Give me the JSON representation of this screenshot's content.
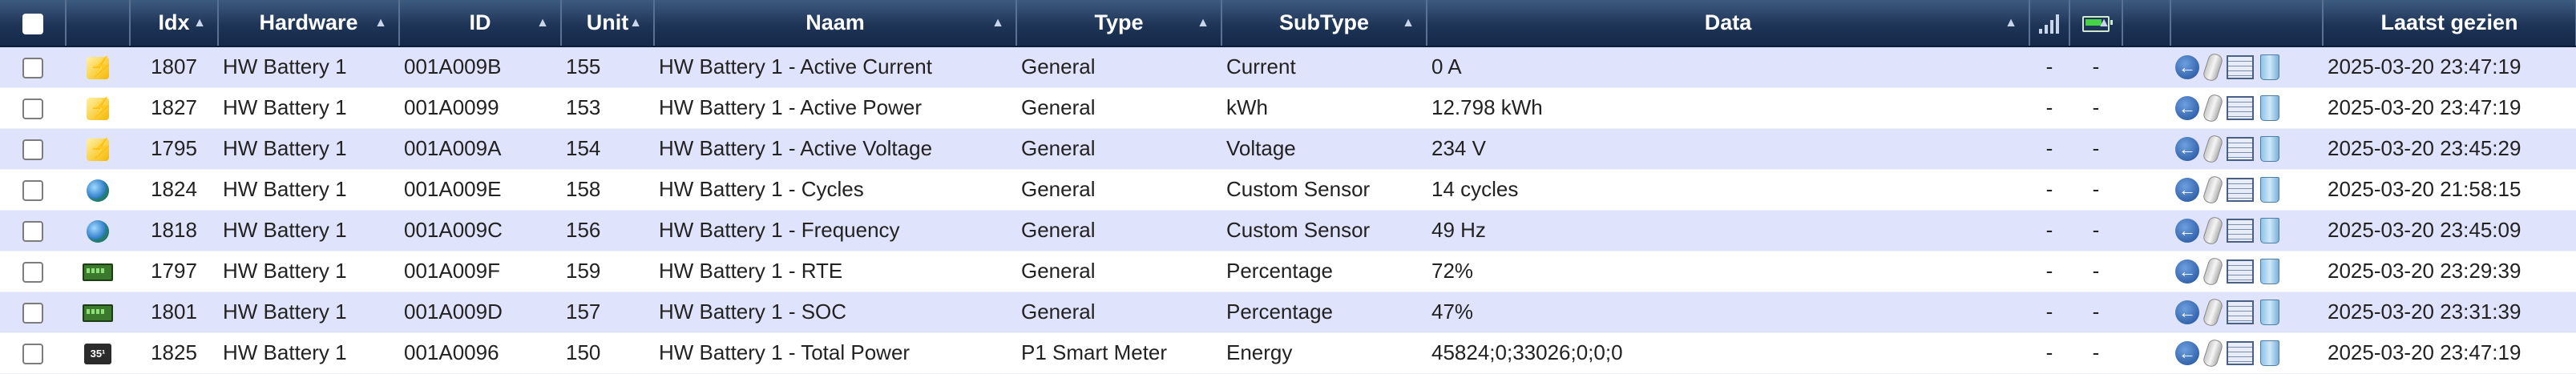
{
  "columns": {
    "idx": "Idx",
    "hardware": "Hardware",
    "id": "ID",
    "unit": "Unit",
    "naam": "Naam",
    "type": "Type",
    "subtype": "SubType",
    "data": "Data",
    "laatst_gezien": "Laatst gezien"
  },
  "icons": {
    "signal": "signal-level-icon",
    "battery": "battery-level-icon",
    "log": "log-icon",
    "edit": "edit-icon",
    "table": "table-icon",
    "delete": "delete-icon"
  },
  "rows": [
    {
      "icon": "current-icon",
      "idx": "1807",
      "hardware": "HW Battery 1",
      "id": "001A009B",
      "unit": "155",
      "naam": "HW Battery 1 - Active Current",
      "type": "General",
      "subtype": "Current",
      "data": "0 A",
      "signal": "-",
      "battery": "-",
      "laatst_gezien": "2025-03-20 23:47:19"
    },
    {
      "icon": "current-icon",
      "idx": "1827",
      "hardware": "HW Battery 1",
      "id": "001A0099",
      "unit": "153",
      "naam": "HW Battery 1 - Active Power",
      "type": "General",
      "subtype": "kWh",
      "data": "12.798 kWh",
      "signal": "-",
      "battery": "-",
      "laatst_gezien": "2025-03-20 23:47:19"
    },
    {
      "icon": "current-icon",
      "idx": "1795",
      "hardware": "HW Battery 1",
      "id": "001A009A",
      "unit": "154",
      "naam": "HW Battery 1 - Active Voltage",
      "type": "General",
      "subtype": "Voltage",
      "data": "234 V",
      "signal": "-",
      "battery": "-",
      "laatst_gezien": "2025-03-20 23:45:29"
    },
    {
      "icon": "globe-icon",
      "idx": "1824",
      "hardware": "HW Battery 1",
      "id": "001A009E",
      "unit": "158",
      "naam": "HW Battery 1 - Cycles",
      "type": "General",
      "subtype": "Custom Sensor",
      "data": "14 cycles",
      "signal": "-",
      "battery": "-",
      "laatst_gezien": "2025-03-20 21:58:15"
    },
    {
      "icon": "globe-icon",
      "idx": "1818",
      "hardware": "HW Battery 1",
      "id": "001A009C",
      "unit": "156",
      "naam": "HW Battery 1 - Frequency",
      "type": "General",
      "subtype": "Custom Sensor",
      "data": "49 Hz",
      "signal": "-",
      "battery": "-",
      "laatst_gezien": "2025-03-20 23:45:09"
    },
    {
      "icon": "percentage-icon",
      "idx": "1797",
      "hardware": "HW Battery 1",
      "id": "001A009F",
      "unit": "159",
      "naam": "HW Battery 1 - RTE",
      "type": "General",
      "subtype": "Percentage",
      "data": "72%",
      "signal": "-",
      "battery": "-",
      "laatst_gezien": "2025-03-20 23:29:39"
    },
    {
      "icon": "percentage-icon",
      "idx": "1801",
      "hardware": "HW Battery 1",
      "id": "001A009D",
      "unit": "157",
      "naam": "HW Battery 1 - SOC",
      "type": "General",
      "subtype": "Percentage",
      "data": "47%",
      "signal": "-",
      "battery": "-",
      "laatst_gezien": "2025-03-20 23:31:39"
    },
    {
      "icon": "energy-meter-icon",
      "idx": "1825",
      "hardware": "HW Battery 1",
      "id": "001A0096",
      "unit": "150",
      "naam": "HW Battery 1 - Total Power",
      "type": "P1 Smart Meter",
      "subtype": "Energy",
      "data": "45824;0;33026;0;0;0",
      "signal": "-",
      "battery": "-",
      "laatst_gezien": "2025-03-20 23:47:19"
    }
  ]
}
